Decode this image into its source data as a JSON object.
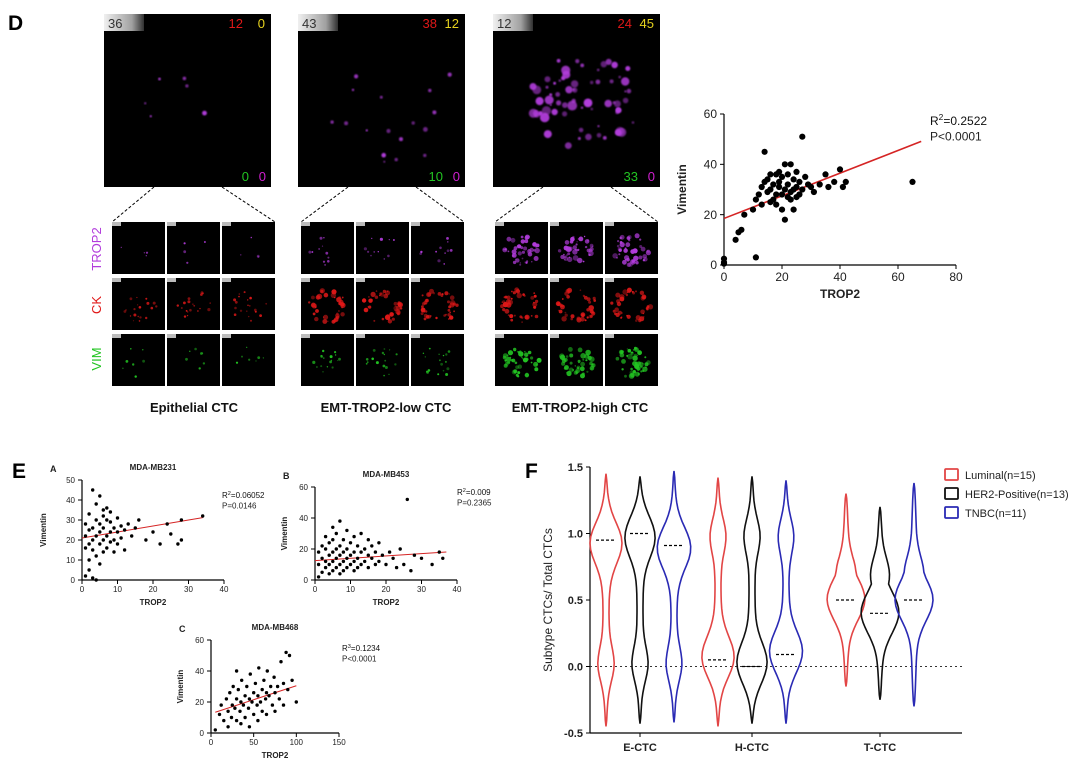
{
  "panels": {
    "D": {
      "letter": "D",
      "colors": {
        "trop2": "#b23cdc",
        "ck": "#e01818",
        "vim": "#22c422",
        "count_white": "#d8d8d8",
        "count_red": "#e01818",
        "count_yellow": "#e6d21e",
        "count_green": "#22c422",
        "count_magenta": "#d020d0"
      },
      "cells": [
        {
          "caption": "Epithelial CTC",
          "total": "36",
          "red": "12",
          "yellow": "0",
          "green": "0",
          "magenta": "0",
          "trop2_level": 0.03,
          "ck_level": 0.35,
          "vim_level": 0.08
        },
        {
          "caption": "EMT-TROP2-low CTC",
          "total": "43",
          "red": "38",
          "yellow": "12",
          "green": "10",
          "magenta": "0",
          "trop2_level": 0.18,
          "ck_level": 0.85,
          "vim_level": 0.3
        },
        {
          "caption": "EMT-TROP2-high CTC",
          "total": "12",
          "red": "24",
          "yellow": "45",
          "green": "33",
          "magenta": "0",
          "trop2_level": 0.9,
          "ck_level": 0.85,
          "vim_level": 0.95
        }
      ],
      "row_labels": {
        "trop2": "TROP2",
        "ck": "CK",
        "vim": "VIM"
      }
    },
    "E": {
      "letter": "E"
    },
    "F": {
      "letter": "F"
    }
  },
  "chart_data": [
    {
      "id": "D-scatter",
      "type": "scatter",
      "xlabel": "TROP2",
      "ylabel": "Vimentin",
      "xlim": [
        0,
        80
      ],
      "ylim": [
        0,
        60
      ],
      "xticks": [
        "0",
        "20",
        "40",
        "60",
        "80"
      ],
      "yticks": [
        "0",
        "20",
        "40",
        "60"
      ],
      "annotation": {
        "r2_prefix": "R",
        "r2_sup": "2",
        "r2_value": "=0.2522",
        "p": "P<0.0001"
      },
      "fit": {
        "intercept": 18.5,
        "slope": 0.45,
        "x_range": [
          0,
          68
        ]
      },
      "points": [
        [
          0,
          1
        ],
        [
          0,
          2.5
        ],
        [
          0,
          0.5
        ],
        [
          4,
          10
        ],
        [
          5,
          13
        ],
        [
          6,
          14
        ],
        [
          7,
          20
        ],
        [
          10,
          22
        ],
        [
          11,
          3
        ],
        [
          11,
          26
        ],
        [
          12,
          28
        ],
        [
          13,
          24
        ],
        [
          13,
          31
        ],
        [
          14,
          45
        ],
        [
          14,
          33
        ],
        [
          15,
          29
        ],
        [
          15,
          34
        ],
        [
          16,
          30
        ],
        [
          16,
          25
        ],
        [
          16,
          36
        ],
        [
          17,
          26
        ],
        [
          17,
          32
        ],
        [
          18,
          28
        ],
        [
          18,
          36
        ],
        [
          18,
          24
        ],
        [
          19,
          31
        ],
        [
          19,
          37
        ],
        [
          19,
          33
        ],
        [
          20,
          22
        ],
        [
          20,
          28
        ],
        [
          20,
          35
        ],
        [
          21,
          30
        ],
        [
          21,
          40
        ],
        [
          21,
          18
        ],
        [
          22,
          27
        ],
        [
          22,
          32
        ],
        [
          22,
          36
        ],
        [
          23,
          26
        ],
        [
          23,
          29
        ],
        [
          23,
          40
        ],
        [
          24,
          30
        ],
        [
          24,
          34
        ],
        [
          24,
          22
        ],
        [
          25,
          31
        ],
        [
          25,
          37
        ],
        [
          25,
          27
        ],
        [
          26,
          33
        ],
        [
          26,
          28
        ],
        [
          27,
          51
        ],
        [
          27,
          30
        ],
        [
          28,
          35
        ],
        [
          29,
          32
        ],
        [
          30,
          31
        ],
        [
          31,
          29
        ],
        [
          33,
          32
        ],
        [
          35,
          36
        ],
        [
          36,
          31
        ],
        [
          38,
          33
        ],
        [
          40,
          38
        ],
        [
          41,
          31
        ],
        [
          42,
          33
        ],
        [
          65,
          33
        ]
      ]
    },
    {
      "id": "E-A",
      "type": "scatter",
      "panel_letter": "A",
      "title": "MDA-MB231",
      "xlabel": "TROP2",
      "ylabel": "Vimentin",
      "xlim": [
        0,
        40
      ],
      "ylim": [
        0,
        50
      ],
      "xticks": [
        "0",
        "10",
        "20",
        "30",
        "40"
      ],
      "yticks": [
        "0",
        "10",
        "20",
        "30",
        "40",
        "50"
      ],
      "annotation": {
        "r2_prefix": "R",
        "r2_sup": "2",
        "r2_value": "=0.06052",
        "p": "P=0.0146"
      },
      "fit": {
        "intercept": 21,
        "slope": 0.3,
        "x_range": [
          0,
          34
        ]
      },
      "points": [
        [
          1,
          2
        ],
        [
          1,
          22
        ],
        [
          1,
          28
        ],
        [
          2,
          10
        ],
        [
          2,
          18
        ],
        [
          2,
          25
        ],
        [
          2,
          33
        ],
        [
          3,
          15
        ],
        [
          3,
          20
        ],
        [
          3,
          26
        ],
        [
          3,
          45
        ],
        [
          4,
          0
        ],
        [
          4,
          12
        ],
        [
          4,
          22
        ],
        [
          4,
          30
        ],
        [
          4,
          38
        ],
        [
          5,
          18
        ],
        [
          5,
          24
        ],
        [
          5,
          28
        ],
        [
          5,
          42
        ],
        [
          6,
          14
        ],
        [
          6,
          20
        ],
        [
          6,
          26
        ],
        [
          6,
          32
        ],
        [
          7,
          16
        ],
        [
          7,
          22
        ],
        [
          7,
          30
        ],
        [
          7,
          36
        ],
        [
          8,
          19
        ],
        [
          8,
          24
        ],
        [
          8,
          29
        ],
        [
          9,
          20
        ],
        [
          9,
          26
        ],
        [
          10,
          18
        ],
        [
          10,
          24
        ],
        [
          10,
          31
        ],
        [
          11,
          21
        ],
        [
          12,
          25
        ],
        [
          12,
          15
        ],
        [
          13,
          28
        ],
        [
          14,
          22
        ],
        [
          15,
          26
        ],
        [
          16,
          30
        ],
        [
          18,
          20
        ],
        [
          20,
          24
        ],
        [
          22,
          18
        ],
        [
          24,
          28
        ],
        [
          25,
          23
        ],
        [
          27,
          18
        ],
        [
          28,
          20
        ],
        [
          28,
          30
        ],
        [
          34,
          32
        ],
        [
          1,
          16
        ],
        [
          2,
          5
        ],
        [
          3,
          1
        ],
        [
          5,
          8
        ],
        [
          6,
          35
        ],
        [
          8,
          34
        ],
        [
          9,
          14
        ],
        [
          11,
          27
        ]
      ]
    },
    {
      "id": "E-B",
      "type": "scatter",
      "panel_letter": "B",
      "title": "MDA-MB453",
      "xlabel": "TROP2",
      "ylabel": "Vimentin",
      "xlim": [
        0,
        40
      ],
      "ylim": [
        0,
        60
      ],
      "xticks": [
        "0",
        "10",
        "20",
        "30",
        "40"
      ],
      "yticks": [
        "0",
        "20",
        "40",
        "60"
      ],
      "annotation": {
        "r2_prefix": "R",
        "r2_sup": "2",
        "r2_value": "=0.009",
        "p": "P=0.2365"
      },
      "fit": {
        "intercept": 12.5,
        "slope": 0.15,
        "x_range": [
          0,
          37
        ]
      },
      "points": [
        [
          1,
          2
        ],
        [
          1,
          10
        ],
        [
          1,
          18
        ],
        [
          2,
          5
        ],
        [
          2,
          14
        ],
        [
          2,
          22
        ],
        [
          3,
          8
        ],
        [
          3,
          12
        ],
        [
          3,
          20
        ],
        [
          3,
          28
        ],
        [
          4,
          4
        ],
        [
          4,
          10
        ],
        [
          4,
          16
        ],
        [
          4,
          24
        ],
        [
          5,
          6
        ],
        [
          5,
          12
        ],
        [
          5,
          18
        ],
        [
          5,
          26
        ],
        [
          5,
          34
        ],
        [
          6,
          8
        ],
        [
          6,
          14
        ],
        [
          6,
          20
        ],
        [
          6,
          30
        ],
        [
          7,
          4
        ],
        [
          7,
          10
        ],
        [
          7,
          16
        ],
        [
          7,
          22
        ],
        [
          7,
          38
        ],
        [
          8,
          6
        ],
        [
          8,
          12
        ],
        [
          8,
          18
        ],
        [
          8,
          26
        ],
        [
          9,
          8
        ],
        [
          9,
          14
        ],
        [
          9,
          20
        ],
        [
          9,
          32
        ],
        [
          10,
          10
        ],
        [
          10,
          16
        ],
        [
          10,
          24
        ],
        [
          11,
          6
        ],
        [
          11,
          12
        ],
        [
          11,
          18
        ],
        [
          11,
          28
        ],
        [
          12,
          8
        ],
        [
          12,
          14
        ],
        [
          12,
          22
        ],
        [
          13,
          10
        ],
        [
          13,
          18
        ],
        [
          13,
          30
        ],
        [
          14,
          12
        ],
        [
          14,
          20
        ],
        [
          15,
          8
        ],
        [
          15,
          16
        ],
        [
          15,
          26
        ],
        [
          16,
          14
        ],
        [
          16,
          22
        ],
        [
          17,
          10
        ],
        [
          17,
          18
        ],
        [
          18,
          12
        ],
        [
          18,
          24
        ],
        [
          19,
          16
        ],
        [
          20,
          10
        ],
        [
          21,
          18
        ],
        [
          22,
          14
        ],
        [
          23,
          8
        ],
        [
          24,
          20
        ],
        [
          25,
          10
        ],
        [
          26,
          52
        ],
        [
          27,
          6
        ],
        [
          28,
          16
        ],
        [
          30,
          14
        ],
        [
          33,
          10
        ],
        [
          35,
          18
        ],
        [
          36,
          14
        ]
      ]
    },
    {
      "id": "E-C",
      "type": "scatter",
      "panel_letter": "C",
      "title": "MDA-MB468",
      "xlabel": "TROP2",
      "ylabel": "Vimentin",
      "xlim": [
        0,
        150
      ],
      "ylim": [
        0,
        60
      ],
      "xticks": [
        "0",
        "50",
        "100",
        "150"
      ],
      "yticks": [
        "0",
        "20",
        "40",
        "60"
      ],
      "annotation": {
        "r2_prefix": "R",
        "r2_sup": "3",
        "r2_value": "=0.1234",
        "p": "P<0.0001"
      },
      "fit": {
        "intercept": 12.5,
        "slope": 0.18,
        "x_range": [
          5,
          100
        ]
      },
      "points": [
        [
          5,
          2
        ],
        [
          10,
          12
        ],
        [
          12,
          18
        ],
        [
          15,
          8
        ],
        [
          18,
          22
        ],
        [
          20,
          14
        ],
        [
          22,
          26
        ],
        [
          24,
          10
        ],
        [
          25,
          18
        ],
        [
          26,
          30
        ],
        [
          28,
          16
        ],
        [
          30,
          22
        ],
        [
          30,
          8
        ],
        [
          32,
          28
        ],
        [
          34,
          14
        ],
        [
          35,
          20
        ],
        [
          36,
          34
        ],
        [
          38,
          18
        ],
        [
          40,
          24
        ],
        [
          40,
          10
        ],
        [
          42,
          30
        ],
        [
          44,
          16
        ],
        [
          45,
          22
        ],
        [
          46,
          38
        ],
        [
          48,
          20
        ],
        [
          50,
          26
        ],
        [
          50,
          12
        ],
        [
          52,
          32
        ],
        [
          54,
          18
        ],
        [
          55,
          24
        ],
        [
          56,
          42
        ],
        [
          58,
          20
        ],
        [
          60,
          28
        ],
        [
          60,
          14
        ],
        [
          62,
          34
        ],
        [
          64,
          22
        ],
        [
          65,
          26
        ],
        [
          66,
          40
        ],
        [
          68,
          24
        ],
        [
          70,
          30
        ],
        [
          72,
          18
        ],
        [
          74,
          36
        ],
        [
          75,
          26
        ],
        [
          78,
          30
        ],
        [
          80,
          22
        ],
        [
          82,
          46
        ],
        [
          85,
          32
        ],
        [
          88,
          52
        ],
        [
          90,
          28
        ],
        [
          92,
          50
        ],
        [
          95,
          34
        ],
        [
          100,
          20
        ],
        [
          20,
          4
        ],
        [
          35,
          6
        ],
        [
          45,
          4
        ],
        [
          55,
          8
        ],
        [
          65,
          12
        ],
        [
          75,
          14
        ],
        [
          85,
          18
        ],
        [
          30,
          40
        ]
      ]
    },
    {
      "id": "F-violin",
      "type": "violin",
      "ylabel": "Subtype CTCs/ Total CTCs",
      "ylim": [
        -0.5,
        1.5
      ],
      "yticks": [
        "-0.5",
        "0.0",
        "0.5",
        "1.0",
        "1.5"
      ],
      "categories": [
        "E-CTC",
        "H-CTC",
        "T-CTC"
      ],
      "series": [
        {
          "name": "Luminal(n=15)",
          "color": "#e24545",
          "medians": [
            0.95,
            0.05,
            0.5
          ],
          "ranges": [
            [
              -0.45,
              1.45
            ],
            [
              -0.45,
              1.42
            ],
            [
              -0.15,
              1.3
            ]
          ]
        },
        {
          "name": "HER2-Positive(n=13)",
          "color": "#111111",
          "medians": [
            1.0,
            0.0,
            0.4
          ],
          "ranges": [
            [
              -0.43,
              1.43
            ],
            [
              -0.43,
              1.43
            ],
            [
              -0.25,
              1.2
            ]
          ]
        },
        {
          "name": "TNBC(n=11)",
          "color": "#2a2ab4",
          "medians": [
            0.91,
            0.09,
            0.5
          ],
          "ranges": [
            [
              -0.42,
              1.47
            ],
            [
              -0.43,
              1.4
            ],
            [
              -0.3,
              1.38
            ]
          ]
        }
      ]
    }
  ]
}
